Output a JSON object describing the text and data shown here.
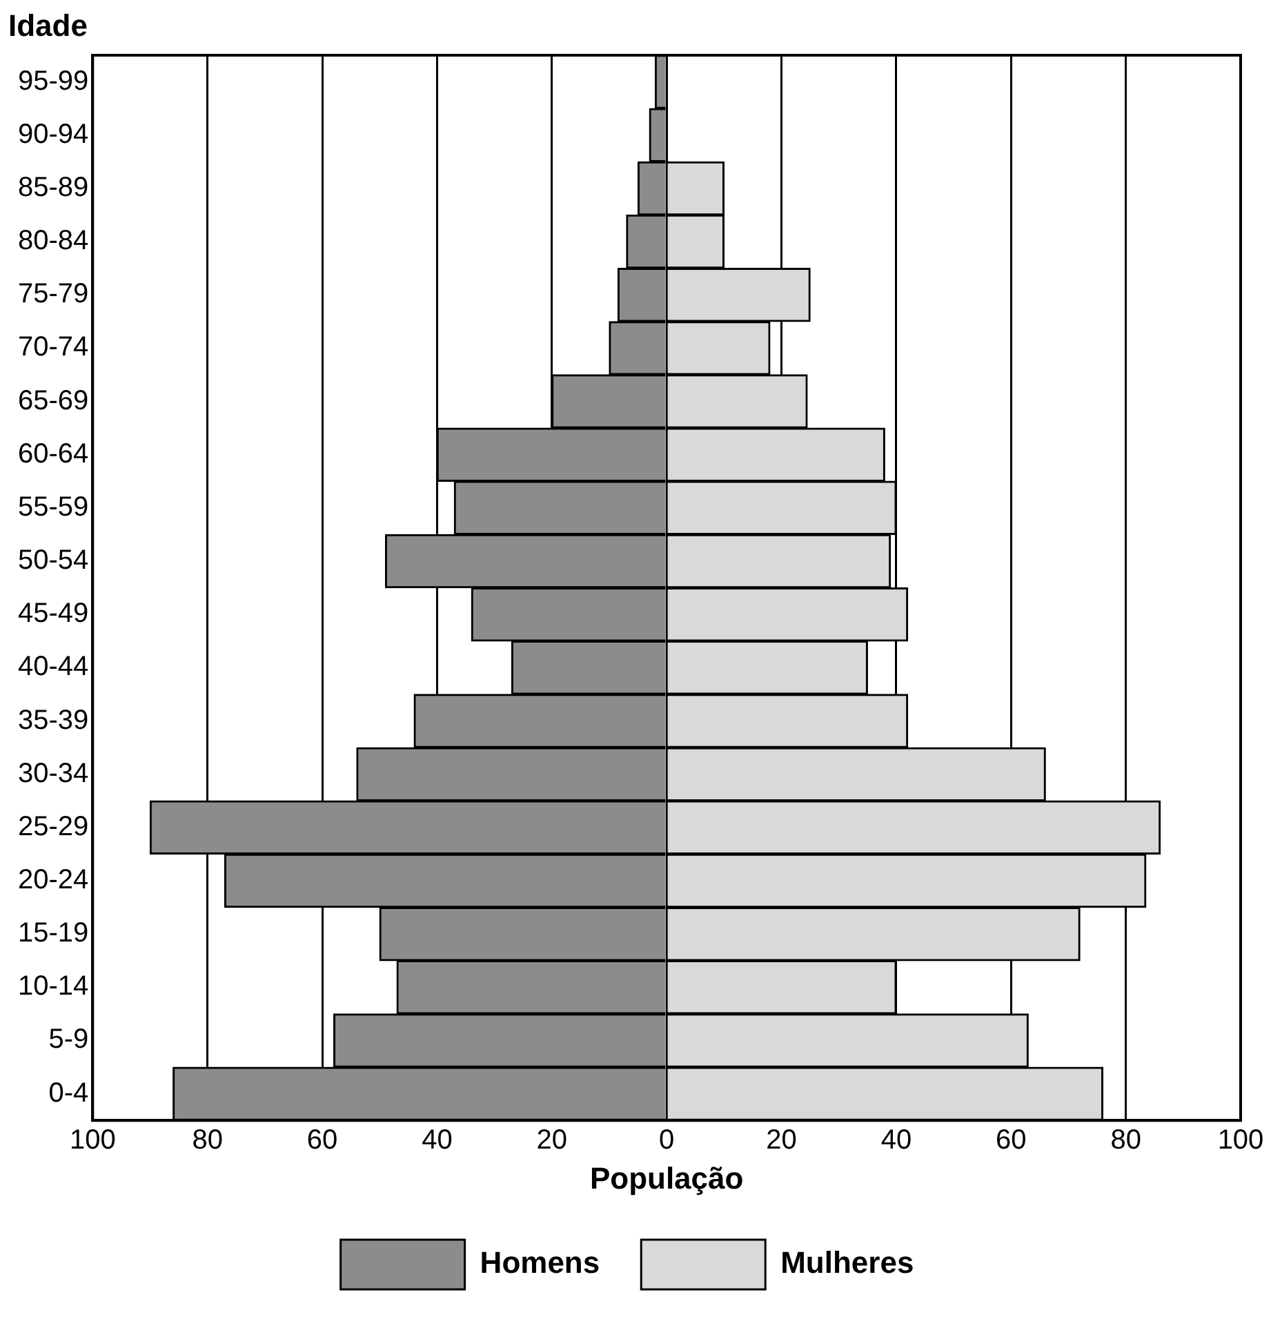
{
  "chart_data": {
    "type": "bar",
    "orientation": "horizontal",
    "stacked": true,
    "xlabel": "População",
    "ylabel": "Idade",
    "categories": [
      "95-99",
      "90-94",
      "85-89",
      "80-84",
      "75-79",
      "70-74",
      "65-69",
      "60-64",
      "55-59",
      "50-54",
      "45-49",
      "40-44",
      "35-39",
      "30-34",
      "25-29",
      "20-24",
      "15-19",
      "10-14",
      "5-9",
      "0-4"
    ],
    "series": [
      {
        "name": "Homens",
        "color": "#8c8c8c",
        "values": [
          -2,
          -3,
          -5,
          -7,
          -8.5,
          -10,
          -20,
          -40,
          -37,
          -49,
          -34,
          -27,
          -44,
          -54,
          -90,
          -77,
          -50,
          -47,
          -58,
          -86
        ]
      },
      {
        "name": "Mulheres",
        "color": "#d9d9d9",
        "values": [
          0,
          0,
          10,
          10,
          25,
          18,
          24.5,
          38,
          40,
          39,
          42,
          35,
          42,
          66,
          86,
          83.5,
          72,
          40,
          63,
          76
        ]
      }
    ],
    "xlim": [
      -100,
      100
    ],
    "xticks": [
      {
        "value": -100,
        "label": "100"
      },
      {
        "value": -80,
        "label": "80"
      },
      {
        "value": -60,
        "label": "60"
      },
      {
        "value": -40,
        "label": "40"
      },
      {
        "value": -20,
        "label": "20"
      },
      0,
      20,
      40,
      60,
      80,
      100
    ],
    "grid": "x",
    "legend": "bottom"
  }
}
